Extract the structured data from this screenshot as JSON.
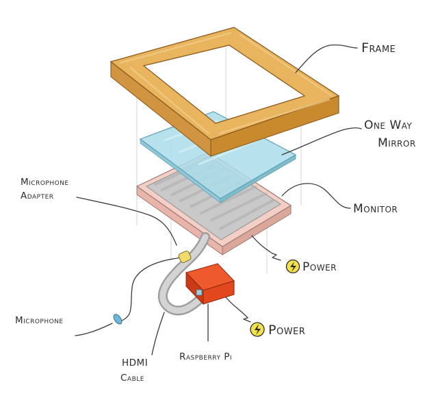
{
  "labels": {
    "frame": "Frame",
    "mirror_line1": "One Way",
    "mirror_line2": "Mirror",
    "monitor": "Monitor",
    "mic_adapter_line1": "Microphone",
    "mic_adapter_line2": "Adapter",
    "power_monitor": "Power",
    "power_pi": "Power",
    "microphone": "Microphone",
    "hdmi_line1": "HDMI",
    "hdmi_line2": "Cable",
    "raspberry_pi": "Raspberry Pi"
  },
  "colors": {
    "frame": "#e8b45e",
    "frame_dark": "#c98a2e",
    "mirror": "#a9dcea",
    "monitor_bezel": "#f4cfc6",
    "monitor_screen": "#c9c9c9",
    "raspberry_pi": "#e3471e",
    "power_badge": "#f2e14c",
    "mic_adapter": "#f0dc6a",
    "cable": "#bdbdbd"
  },
  "icons": {
    "power": "lightning-bolt-icon"
  }
}
